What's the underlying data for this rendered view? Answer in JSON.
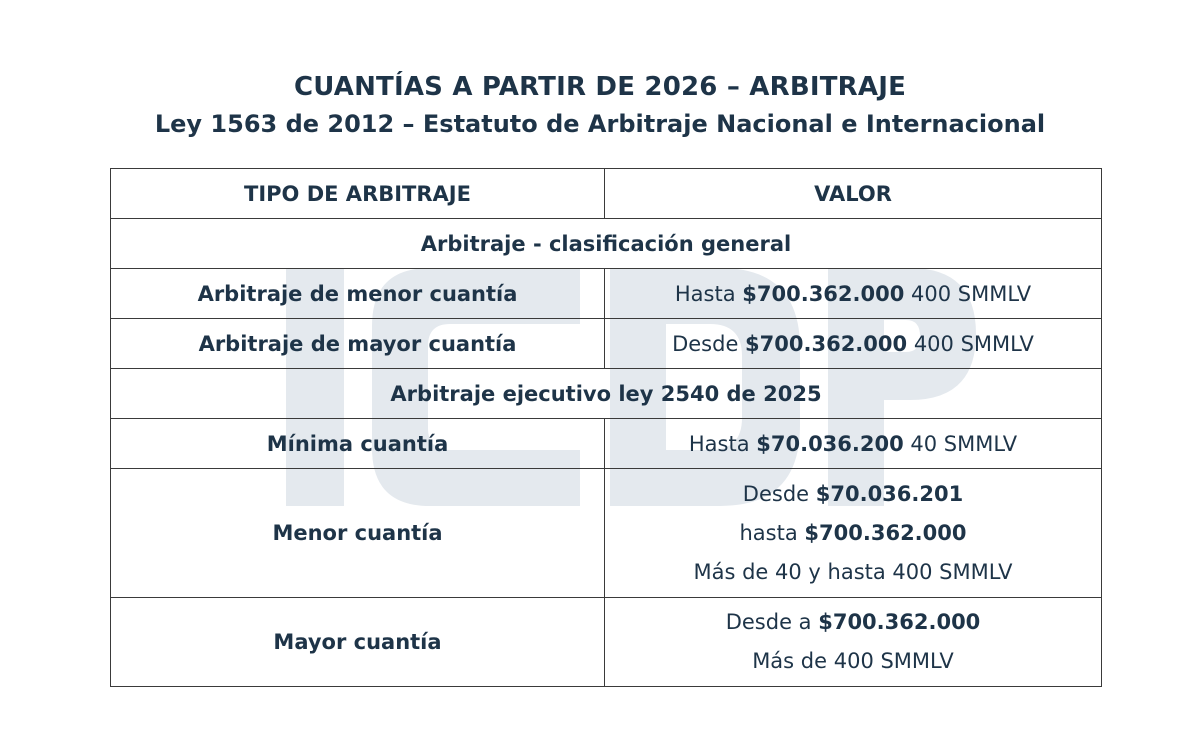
{
  "header": {
    "title": "CUANTÍAS A PARTIR DE 2026 – ARBITRAJE",
    "subtitle": "Ley 1563 de 2012 – Estatuto de Arbitraje Nacional e Internacional"
  },
  "watermark": {
    "text": "ICDP",
    "color": "#e4e9ee"
  },
  "table": {
    "col_tipo": "TIPO DE ARBITRAJE",
    "col_valor": "VALOR",
    "section_general": "Arbitraje - clasificación general",
    "rows_general": [
      {
        "tipo": "Arbitraje de menor cuantía",
        "prefix": "Hasta",
        "amount": "$700.362.000",
        "suffix": "400 SMMLV"
      },
      {
        "tipo": "Arbitraje de mayor cuantía",
        "prefix": "Desde",
        "amount": "$700.362.000",
        "suffix": "400 SMMLV"
      }
    ],
    "section_ejecutivo": "Arbitraje ejecutivo ley 2540 de 2025",
    "minima": {
      "tipo": "Mínima cuantía",
      "prefix": "Hasta",
      "amount": "$70.036.200",
      "suffix": "40 SMMLV"
    },
    "menor": {
      "tipo": "Menor cuantía",
      "l1_prefix": "Desde",
      "l1_amount": "$70.036.201",
      "l2_prefix": "hasta",
      "l2_amount": "$700.362.000",
      "l3": "Más de 40 y hasta 400 SMMLV"
    },
    "mayor": {
      "tipo": "Mayor cuantía",
      "l1_prefix": "Desde a",
      "l1_amount": "$700.362.000",
      "l2": "Más de 400 SMMLV"
    }
  }
}
